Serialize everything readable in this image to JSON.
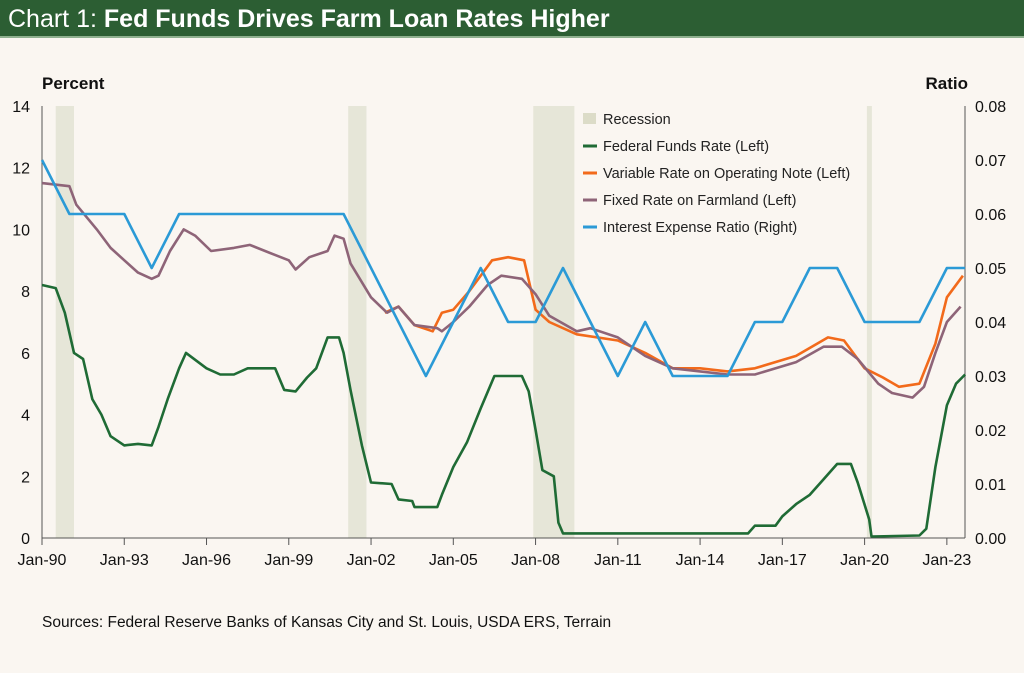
{
  "header": {
    "prefix": "Chart 1:",
    "title": "Fed Funds Drives Farm Loan Rates Higher"
  },
  "sources": "Sources: Federal Reserve Banks of Kansas City and St. Louis, USDA ERS, Terrain",
  "chart_data": {
    "type": "line",
    "title": "Chart 1: Fed Funds Drives Farm Loan Rates Higher",
    "ylabel": "Percent",
    "y2label": "Ratio",
    "ylim": [
      0,
      14
    ],
    "y2lim": [
      0,
      0.08
    ],
    "xlim": [
      "1990-01",
      "2024-06"
    ],
    "xticks": [
      "Jan-90",
      "Jan-93",
      "Jan-96",
      "Jan-99",
      "Jan-02",
      "Jan-05",
      "Jan-08",
      "Jan-11",
      "Jan-14",
      "Jan-17",
      "Jan-20",
      "Jan-23"
    ],
    "yticks": [
      "0",
      "2",
      "4",
      "6",
      "8",
      "10",
      "12",
      "14"
    ],
    "y2ticks": [
      "0.00",
      "0.01",
      "0.02",
      "0.03",
      "0.04",
      "0.05",
      "0.06",
      "0.07",
      "0.08"
    ],
    "grid": false,
    "legend_placement": "top-right",
    "recessions": {
      "name": "Recession",
      "color": "#e6e6d8",
      "periods": [
        [
          "1990-07",
          "1991-03"
        ],
        [
          "2001-03",
          "2001-11"
        ],
        [
          "2007-12",
          "2009-06"
        ],
        [
          "2020-02",
          "2020-04"
        ]
      ]
    },
    "series": [
      {
        "name": "Federal Funds Rate (Left)",
        "axis": "left",
        "color": "#1f6b35",
        "points": [
          [
            "1990-01",
            8.2
          ],
          [
            "1990-07",
            8.1
          ],
          [
            "1990-11",
            7.3
          ],
          [
            "1991-03",
            6.0
          ],
          [
            "1991-07",
            5.8
          ],
          [
            "1991-11",
            4.5
          ],
          [
            "1992-03",
            4.0
          ],
          [
            "1992-07",
            3.3
          ],
          [
            "1993-01",
            3.0
          ],
          [
            "1993-07",
            3.05
          ],
          [
            "1994-01",
            3.0
          ],
          [
            "1994-04",
            3.6
          ],
          [
            "1994-08",
            4.5
          ],
          [
            "1995-01",
            5.5
          ],
          [
            "1995-04",
            6.0
          ],
          [
            "1996-01",
            5.5
          ],
          [
            "1996-07",
            5.3
          ],
          [
            "1997-01",
            5.3
          ],
          [
            "1997-07",
            5.5
          ],
          [
            "1998-07",
            5.5
          ],
          [
            "1998-11",
            4.8
          ],
          [
            "1999-04",
            4.75
          ],
          [
            "1999-09",
            5.2
          ],
          [
            "2000-01",
            5.5
          ],
          [
            "2000-06",
            6.5
          ],
          [
            "2000-11",
            6.5
          ],
          [
            "2001-01",
            6.0
          ],
          [
            "2001-04",
            4.8
          ],
          [
            "2001-09",
            3.0
          ],
          [
            "2002-01",
            1.8
          ],
          [
            "2002-10",
            1.75
          ],
          [
            "2003-01",
            1.25
          ],
          [
            "2003-07",
            1.2
          ],
          [
            "2003-08",
            1.0
          ],
          [
            "2004-06",
            1.0
          ],
          [
            "2004-08",
            1.4
          ],
          [
            "2005-01",
            2.3
          ],
          [
            "2005-07",
            3.1
          ],
          [
            "2006-01",
            4.2
          ],
          [
            "2006-07",
            5.25
          ],
          [
            "2007-07",
            5.25
          ],
          [
            "2007-10",
            4.75
          ],
          [
            "2008-01",
            3.5
          ],
          [
            "2008-04",
            2.2
          ],
          [
            "2008-09",
            2.0
          ],
          [
            "2008-11",
            0.5
          ],
          [
            "2009-01",
            0.15
          ],
          [
            "2012-01",
            0.15
          ],
          [
            "2015-10",
            0.15
          ],
          [
            "2016-01",
            0.4
          ],
          [
            "2016-10",
            0.4
          ],
          [
            "2017-01",
            0.7
          ],
          [
            "2017-07",
            1.1
          ],
          [
            "2018-01",
            1.4
          ],
          [
            "2018-07",
            1.9
          ],
          [
            "2019-01",
            2.4
          ],
          [
            "2019-07",
            2.4
          ],
          [
            "2019-10",
            1.8
          ],
          [
            "2020-03",
            0.6
          ],
          [
            "2020-04",
            0.05
          ],
          [
            "2022-01",
            0.08
          ],
          [
            "2022-04",
            0.3
          ],
          [
            "2022-08",
            2.3
          ],
          [
            "2023-01",
            4.3
          ],
          [
            "2023-05",
            5.0
          ],
          [
            "2023-09",
            5.3
          ]
        ]
      },
      {
        "name": "Variable Rate on Operating Note (Left)",
        "axis": "left",
        "color": "#f26a1b",
        "points": [
          [
            "2002-07",
            7.3
          ],
          [
            "2003-01",
            7.5
          ],
          [
            "2003-08",
            6.9
          ],
          [
            "2004-04",
            6.7
          ],
          [
            "2004-08",
            7.3
          ],
          [
            "2005-01",
            7.4
          ],
          [
            "2005-08",
            8.0
          ],
          [
            "2006-06",
            9.0
          ],
          [
            "2007-01",
            9.1
          ],
          [
            "2007-08",
            9.0
          ],
          [
            "2008-01",
            7.4
          ],
          [
            "2008-07",
            7.0
          ],
          [
            "2009-07",
            6.6
          ],
          [
            "2011-01",
            6.4
          ],
          [
            "2012-01",
            6.0
          ],
          [
            "2013-01",
            5.5
          ],
          [
            "2014-01",
            5.5
          ],
          [
            "2015-01",
            5.4
          ],
          [
            "2016-01",
            5.5
          ],
          [
            "2017-07",
            5.9
          ],
          [
            "2018-09",
            6.5
          ],
          [
            "2019-04",
            6.4
          ],
          [
            "2020-01",
            5.5
          ],
          [
            "2020-09",
            5.2
          ],
          [
            "2021-04",
            4.9
          ],
          [
            "2022-01",
            5.0
          ],
          [
            "2022-08",
            6.3
          ],
          [
            "2023-01",
            7.8
          ],
          [
            "2023-08",
            8.5
          ]
        ]
      },
      {
        "name": "Fixed Rate on Farmland (Left)",
        "axis": "left",
        "color": "#8e6478",
        "points": [
          [
            "1990-01",
            11.5
          ],
          [
            "1991-01",
            11.4
          ],
          [
            "1991-04",
            10.8
          ],
          [
            "1992-01",
            10.0
          ],
          [
            "1992-07",
            9.4
          ],
          [
            "1993-01",
            9.0
          ],
          [
            "1993-07",
            8.6
          ],
          [
            "1994-01",
            8.4
          ],
          [
            "1994-04",
            8.5
          ],
          [
            "1994-09",
            9.3
          ],
          [
            "1995-03",
            10.0
          ],
          [
            "1995-08",
            9.8
          ],
          [
            "1996-03",
            9.3
          ],
          [
            "1997-01",
            9.4
          ],
          [
            "1997-08",
            9.5
          ],
          [
            "1998-06",
            9.2
          ],
          [
            "1999-01",
            9.0
          ],
          [
            "1999-04",
            8.7
          ],
          [
            "1999-10",
            9.1
          ],
          [
            "2000-06",
            9.3
          ],
          [
            "2000-09",
            9.8
          ],
          [
            "2001-01",
            9.7
          ],
          [
            "2001-04",
            8.9
          ],
          [
            "2002-01",
            7.8
          ],
          [
            "2002-08",
            7.3
          ],
          [
            "2003-01",
            7.5
          ],
          [
            "2003-08",
            6.9
          ],
          [
            "2004-06",
            6.8
          ],
          [
            "2004-08",
            6.7
          ],
          [
            "2005-01",
            7.0
          ],
          [
            "2005-08",
            7.5
          ],
          [
            "2006-04",
            8.2
          ],
          [
            "2006-10",
            8.5
          ],
          [
            "2007-07",
            8.4
          ],
          [
            "2008-01",
            7.9
          ],
          [
            "2008-07",
            7.2
          ],
          [
            "2009-07",
            6.7
          ],
          [
            "2010-01",
            6.8
          ],
          [
            "2011-01",
            6.5
          ],
          [
            "2012-01",
            5.9
          ],
          [
            "2013-01",
            5.5
          ],
          [
            "2014-01",
            5.4
          ],
          [
            "2015-01",
            5.3
          ],
          [
            "2016-01",
            5.3
          ],
          [
            "2017-07",
            5.7
          ],
          [
            "2018-07",
            6.2
          ],
          [
            "2019-03",
            6.2
          ],
          [
            "2019-10",
            5.8
          ],
          [
            "2020-07",
            5.0
          ],
          [
            "2021-01",
            4.7
          ],
          [
            "2021-10",
            4.55
          ],
          [
            "2022-03",
            4.9
          ],
          [
            "2022-08",
            6.0
          ],
          [
            "2023-01",
            7.0
          ],
          [
            "2023-07",
            7.5
          ]
        ]
      },
      {
        "name": "Interest Expense Ratio (Right)",
        "axis": "right",
        "color": "#2b9ad6",
        "points": [
          [
            "1990-01",
            0.07
          ],
          [
            "1991-01",
            0.06
          ],
          [
            "1993-01",
            0.06
          ],
          [
            "1994-01",
            0.05
          ],
          [
            "1995-01",
            0.06
          ],
          [
            "2001-01",
            0.06
          ],
          [
            "2004-01",
            0.03
          ],
          [
            "2006-01",
            0.05
          ],
          [
            "2007-01",
            0.04
          ],
          [
            "2008-01",
            0.04
          ],
          [
            "2009-01",
            0.05
          ],
          [
            "2010-01",
            0.04
          ],
          [
            "2011-01",
            0.03
          ],
          [
            "2012-01",
            0.04
          ],
          [
            "2013-01",
            0.03
          ],
          [
            "2015-01",
            0.03
          ],
          [
            "2016-01",
            0.04
          ],
          [
            "2017-01",
            0.04
          ],
          [
            "2018-01",
            0.05
          ],
          [
            "2019-01",
            0.05
          ],
          [
            "2020-01",
            0.04
          ],
          [
            "2022-01",
            0.04
          ],
          [
            "2023-01",
            0.05
          ],
          [
            "2023-09",
            0.05
          ]
        ]
      }
    ]
  }
}
